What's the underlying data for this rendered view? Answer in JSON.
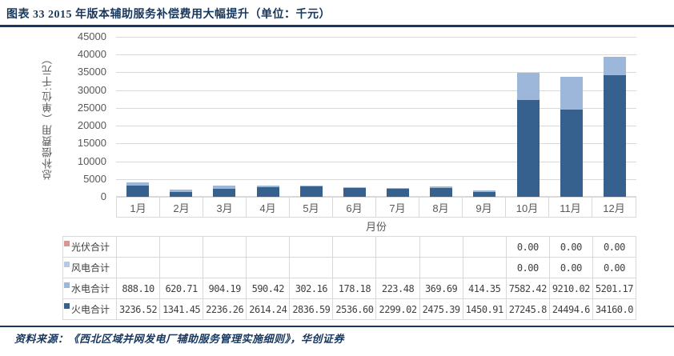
{
  "header": {
    "title": "图表 33  2015 年版本辅助服务补偿费用大幅提升（单位：千元）"
  },
  "footer": {
    "source": "资料来源：《西北区域并网发电厂辅助服务管理实施细则》，华创证券"
  },
  "colors": {
    "accent_navy": "#17375E",
    "grid_line": "#D9D9D9",
    "axis_text": "#595959",
    "table_text": "#404040"
  },
  "chart_data": {
    "type": "bar",
    "stacked": true,
    "title": "2015 年版本辅助服务补偿费用大幅提升",
    "unit": "千元",
    "xlabel": "月份",
    "ylabel": "总补偿费用（单位:千元）",
    "ylim": [
      0,
      45000
    ],
    "yticks": [
      0,
      5000,
      10000,
      15000,
      20000,
      25000,
      30000,
      35000,
      40000,
      45000
    ],
    "grid": true,
    "legend_position": "table-left",
    "categories": [
      "1月",
      "2月",
      "3月",
      "4月",
      "5月",
      "6月",
      "7月",
      "8月",
      "9月",
      "10月",
      "11月",
      "12月"
    ],
    "series": [
      {
        "id": "pv",
        "name": "光伏合计",
        "color": "#D99694",
        "values": [
          0,
          0,
          0,
          0,
          0,
          0,
          0,
          0,
          0,
          0,
          0,
          0
        ],
        "display": [
          "",
          "",
          "",
          "",
          "",
          "",
          "",
          "",
          "",
          "0.00",
          "0.00",
          "0.00"
        ]
      },
      {
        "id": "wind",
        "name": "风电合计",
        "color": "#B7C9E2",
        "values": [
          0,
          0,
          0,
          0,
          0,
          0,
          0,
          0,
          0,
          0,
          0,
          0
        ],
        "display": [
          "",
          "",
          "",
          "",
          "",
          "",
          "",
          "",
          "",
          "0.00",
          "0.00",
          "0.00"
        ]
      },
      {
        "id": "hydro",
        "name": "水电合计",
        "color": "#9CB7D9",
        "values": [
          888.1,
          620.71,
          904.19,
          590.42,
          302.16,
          178.18,
          223.48,
          369.69,
          414.35,
          7582.42,
          9210.02,
          5201.17
        ],
        "display": [
          "888.10",
          "620.71",
          "904.19",
          "590.42",
          "302.16",
          "178.18",
          "223.48",
          "369.69",
          "414.35",
          "7582.42",
          "9210.02",
          "5201.17"
        ]
      },
      {
        "id": "thermal",
        "name": "火电合计",
        "color": "#36618E",
        "values": [
          3236.52,
          1341.45,
          2236.26,
          2614.24,
          2836.59,
          2536.6,
          2299.02,
          2475.39,
          1450.91,
          27245.8,
          24494.6,
          34160.0
        ],
        "display": [
          "3236.52",
          "1341.45",
          "2236.26",
          "2614.24",
          "2836.59",
          "2536.60",
          "2299.02",
          "2475.39",
          "1450.91",
          "27245.8",
          "24494.6",
          "34160.0"
        ]
      }
    ],
    "stack_order_bottom_to_top": [
      "thermal",
      "hydro",
      "wind",
      "pv"
    ]
  }
}
